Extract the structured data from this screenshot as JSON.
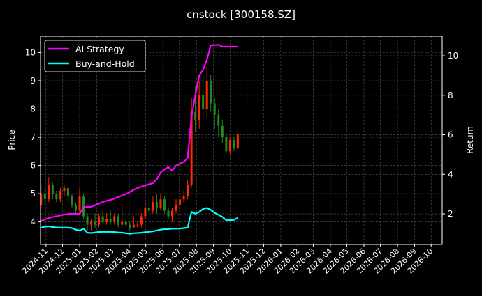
{
  "chart_data": {
    "type": "line",
    "title": "cnstock [300158.SZ]",
    "xlabel": "",
    "ylabel_left": "Price",
    "ylabel_right": "Return",
    "xlim": [
      "2024-10-22",
      "2026-10-21"
    ],
    "ylim_left": [
      3.2,
      10.58
    ],
    "ylim_right": [
      0.45,
      10.99
    ],
    "grid": true,
    "legend_position": "top-left",
    "x_tick_labels": [
      "2024-11",
      "2024-12",
      "2025-01",
      "2025-02",
      "2025-03",
      "2025-04",
      "2025-05",
      "2025-06",
      "2025-07",
      "2025-08",
      "2025-09",
      "2025-10",
      "2025-11",
      "2025-12",
      "2026-01",
      "2026-02",
      "2026-03",
      "2026-04",
      "2026-05",
      "2026-06",
      "2026-07",
      "2026-08",
      "2026-09",
      "2026-10"
    ],
    "y_ticks_left": [
      4,
      5,
      6,
      7,
      8,
      9,
      10
    ],
    "y_ticks_right": [
      2,
      4,
      6,
      8,
      10
    ],
    "colors": {
      "background": "#000000",
      "up": "#ff2a00",
      "down": "#1f8a1f",
      "ai_strategy": "#ff00ff",
      "buy_and_hold": "#00ffff",
      "grid": "#555555"
    },
    "dates": [
      "2024-10-23",
      "2024-10-30",
      "2024-11-06",
      "2024-11-13",
      "2024-11-20",
      "2024-11-27",
      "2024-12-04",
      "2024-12-11",
      "2024-12-18",
      "2024-12-25",
      "2025-01-01",
      "2025-01-08",
      "2025-01-15",
      "2025-01-22",
      "2025-01-29",
      "2025-02-05",
      "2025-02-12",
      "2025-02-19",
      "2025-02-26",
      "2025-03-05",
      "2025-03-12",
      "2025-03-19",
      "2025-03-26",
      "2025-04-02",
      "2025-04-09",
      "2025-04-16",
      "2025-04-23",
      "2025-04-30",
      "2025-05-07",
      "2025-05-14",
      "2025-05-21",
      "2025-05-28",
      "2025-06-04",
      "2025-06-11",
      "2025-06-18",
      "2025-06-25",
      "2025-07-02",
      "2025-07-09",
      "2025-07-16",
      "2025-07-23",
      "2025-07-30",
      "2025-08-06",
      "2025-08-13",
      "2025-08-20",
      "2025-08-27",
      "2025-09-03",
      "2025-09-10",
      "2025-09-17",
      "2025-09-24",
      "2025-10-01",
      "2025-10-08",
      "2025-10-15"
    ],
    "candles": [
      [
        4.6,
        5.3,
        4.5,
        5.0
      ],
      [
        5.0,
        5.2,
        4.6,
        4.8
      ],
      [
        4.8,
        5.6,
        4.7,
        5.3
      ],
      [
        5.3,
        5.4,
        4.8,
        5.0
      ],
      [
        5.0,
        5.1,
        4.7,
        4.8
      ],
      [
        4.8,
        5.2,
        4.7,
        5.1
      ],
      [
        5.1,
        5.3,
        4.9,
        5.2
      ],
      [
        5.2,
        5.3,
        4.8,
        4.9
      ],
      [
        4.9,
        5.0,
        4.5,
        4.6
      ],
      [
        4.6,
        4.7,
        4.3,
        4.4
      ],
      [
        4.4,
        5.2,
        4.3,
        4.9
      ],
      [
        4.9,
        5.0,
        4.1,
        4.2
      ],
      [
        4.2,
        4.3,
        3.7,
        3.9
      ],
      [
        3.9,
        4.1,
        3.7,
        4.0
      ],
      [
        4.0,
        4.3,
        3.8,
        3.9
      ],
      [
        3.9,
        4.3,
        3.8,
        4.2
      ],
      [
        4.2,
        4.4,
        3.9,
        4.0
      ],
      [
        4.0,
        4.3,
        3.9,
        4.1
      ],
      [
        4.1,
        4.4,
        3.9,
        4.0
      ],
      [
        4.0,
        4.3,
        3.9,
        4.2
      ],
      [
        4.2,
        4.3,
        3.8,
        3.9
      ],
      [
        3.9,
        4.6,
        3.8,
        4.0
      ],
      [
        4.0,
        4.1,
        3.8,
        3.9
      ],
      [
        3.9,
        4.0,
        3.7,
        3.8
      ],
      [
        3.8,
        4.2,
        3.8,
        3.9
      ],
      [
        3.9,
        4.0,
        3.8,
        3.9
      ],
      [
        3.9,
        4.3,
        3.8,
        4.2
      ],
      [
        4.2,
        4.7,
        4.1,
        4.5
      ],
      [
        4.5,
        4.8,
        4.2,
        4.4
      ],
      [
        4.4,
        4.9,
        4.3,
        4.7
      ],
      [
        4.7,
        5.0,
        4.3,
        4.5
      ],
      [
        4.5,
        5.0,
        4.4,
        4.8
      ],
      [
        4.8,
        4.9,
        4.3,
        4.4
      ],
      [
        4.4,
        4.5,
        4.1,
        4.2
      ],
      [
        4.2,
        4.5,
        4.0,
        4.4
      ],
      [
        4.4,
        4.8,
        4.3,
        4.6
      ],
      [
        4.6,
        4.9,
        4.5,
        4.8
      ],
      [
        4.8,
        5.1,
        4.7,
        4.9
      ],
      [
        4.9,
        5.5,
        4.8,
        5.3
      ],
      [
        5.3,
        8.4,
        5.2,
        7.9
      ],
      [
        7.9,
        8.8,
        7.2,
        7.6
      ],
      [
        7.6,
        9.0,
        7.3,
        8.5
      ],
      [
        8.5,
        9.2,
        7.6,
        8.0
      ],
      [
        8.0,
        9.5,
        7.7,
        9.0
      ],
      [
        9.0,
        9.2,
        7.9,
        8.2
      ],
      [
        8.2,
        8.4,
        7.3,
        7.8
      ],
      [
        7.8,
        8.0,
        7.0,
        7.4
      ],
      [
        7.4,
        7.6,
        6.8,
        7.0
      ],
      [
        7.0,
        7.1,
        6.4,
        6.5
      ],
      [
        6.5,
        7.0,
        6.4,
        6.9
      ],
      [
        6.9,
        7.0,
        6.5,
        6.6
      ],
      [
        6.6,
        7.4,
        6.6,
        7.1
      ]
    ],
    "candle_fields": [
      "open",
      "high",
      "low",
      "close"
    ],
    "series": [
      {
        "name": "AI Strategy",
        "axis": "right",
        "values": [
          1.65,
          1.72,
          1.79,
          1.84,
          1.88,
          1.92,
          1.96,
          1.99,
          2.0,
          2.0,
          2.0,
          2.33,
          2.35,
          2.36,
          2.44,
          2.52,
          2.6,
          2.66,
          2.71,
          2.77,
          2.85,
          2.92,
          3.0,
          3.1,
          3.22,
          3.3,
          3.38,
          3.44,
          3.5,
          3.56,
          3.75,
          4.1,
          4.25,
          4.37,
          4.19,
          4.44,
          4.54,
          4.63,
          4.82,
          6.9,
          8.0,
          9.0,
          9.3,
          9.8,
          10.53,
          10.54,
          10.56,
          10.46,
          10.46,
          10.46,
          10.46,
          10.46
        ]
      },
      {
        "name": "Buy-and-Hold",
        "axis": "right",
        "values": [
          1.3,
          1.35,
          1.37,
          1.33,
          1.31,
          1.3,
          1.3,
          1.3,
          1.28,
          1.2,
          1.15,
          1.25,
          1.05,
          1.03,
          1.06,
          1.08,
          1.09,
          1.1,
          1.09,
          1.08,
          1.06,
          1.05,
          1.02,
          0.99,
          1.02,
          1.03,
          1.05,
          1.07,
          1.09,
          1.12,
          1.16,
          1.2,
          1.23,
          1.23,
          1.25,
          1.25,
          1.26,
          1.28,
          1.3,
          2.1,
          2.0,
          2.1,
          2.25,
          2.3,
          2.2,
          2.05,
          1.95,
          1.85,
          1.68,
          1.68,
          1.7,
          1.8
        ]
      }
    ]
  }
}
